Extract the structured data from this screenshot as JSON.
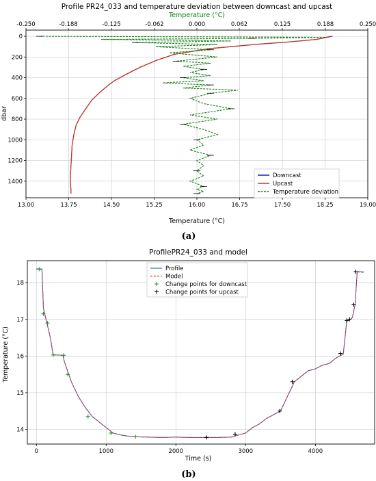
{
  "panel_labels": [
    "(a)",
    "(b)"
  ],
  "chart_data": [
    {
      "type": "line",
      "title": "Profile PR24_033 and temperature deviation between downcast and upcast",
      "xlabel": "Temperature (°C)",
      "ylabel": "dbar",
      "top_xlabel": "Temperature (°C)",
      "xlim": [
        13.0,
        19.0
      ],
      "ylim": [
        1560,
        -60
      ],
      "top_xlim": [
        -0.25,
        0.25
      ],
      "x_ticks": [
        "13.00",
        "13.75",
        "14.50",
        "15.25",
        "16.00",
        "16.75",
        "17.50",
        "18.25",
        "19.00"
      ],
      "y_ticks": [
        "0",
        "200",
        "400",
        "600",
        "800",
        "1000",
        "1200",
        "1400"
      ],
      "top_x_ticks": [
        "-0.250",
        "-0.188",
        "-0.125",
        "-0.062",
        "0.000",
        "0.062",
        "0.125",
        "0.188",
        "0.250"
      ],
      "grid": true,
      "legend_position": "lower-right",
      "colors": {
        "downcast": "#1f1fb4",
        "upcast": "#c0392b",
        "deviation": "#1a7f1a",
        "accent_green": "#008000",
        "error_bar": "#000000"
      },
      "series": [
        {
          "name": "Downcast",
          "axis": "bottom",
          "x": [
            18.38,
            18.1,
            17.6,
            17.1,
            16.2,
            15.6,
            15.3,
            15.0,
            14.75,
            14.55,
            14.45,
            14.3,
            14.15,
            14.05,
            13.95,
            13.88,
            13.84,
            13.81,
            13.8,
            13.79,
            13.78,
            13.78,
            13.79,
            13.79
          ],
          "y": [
            0,
            30,
            55,
            75,
            120,
            175,
            230,
            300,
            370,
            430,
            470,
            540,
            620,
            700,
            780,
            860,
            950,
            1050,
            1150,
            1250,
            1350,
            1420,
            1480,
            1520
          ]
        },
        {
          "name": "Upcast",
          "axis": "bottom",
          "x": [
            18.35,
            18.1,
            17.6,
            17.1,
            16.2,
            15.6,
            15.3,
            15.0,
            14.75,
            14.55,
            14.45,
            14.3,
            14.15,
            14.05,
            13.95,
            13.88,
            13.84,
            13.81,
            13.8,
            13.79,
            13.78,
            13.78,
            13.79,
            13.79
          ],
          "y": [
            0,
            30,
            55,
            75,
            120,
            175,
            230,
            300,
            370,
            430,
            470,
            540,
            620,
            700,
            780,
            860,
            950,
            1050,
            1150,
            1250,
            1350,
            1420,
            1480,
            1520
          ]
        },
        {
          "name": "Temperature deviation",
          "axis": "top",
          "x": [
            -0.23,
            0.0,
            0.19,
            0.08,
            -0.14,
            0.05,
            -0.09,
            0.03,
            -0.06,
            0.02,
            -0.04,
            0.03,
            -0.03,
            0.02,
            -0.02,
            0.01,
            -0.01,
            0.02,
            -0.02,
            0.01,
            -0.05,
            0.02,
            -0.02,
            0.06,
            0.02,
            -0.01,
            0.01,
            0.05,
            -0.01,
            0.03,
            -0.02,
            0.01,
            0.03,
            0.0,
            0.01,
            -0.01,
            0.02,
            0.0,
            0.01,
            0.0,
            0.01,
            -0.01,
            0.01,
            0.0,
            0.01,
            0.0,
            0.0
          ],
          "y": [
            0,
            5,
            10,
            20,
            30,
            45,
            60,
            80,
            100,
            130,
            160,
            200,
            240,
            260,
            290,
            320,
            350,
            380,
            400,
            430,
            450,
            470,
            500,
            520,
            550,
            600,
            650,
            700,
            760,
            800,
            850,
            900,
            950,
            1000,
            1050,
            1100,
            1150,
            1200,
            1250,
            1300,
            1350,
            1400,
            1450,
            1480,
            1500,
            1520,
            1520
          ]
        }
      ]
    },
    {
      "type": "line",
      "title": "ProfilePR24_033 and model",
      "xlabel": "Time (s)",
      "ylabel": "Temperature (°C)",
      "xlim": [
        -130,
        4850
      ],
      "ylim": [
        13.6,
        18.6
      ],
      "x_ticks": [
        "0",
        "1000",
        "2000",
        "3000",
        "4000"
      ],
      "y_ticks": [
        "14",
        "15",
        "16",
        "17",
        "18"
      ],
      "grid": true,
      "legend_position": "top-center",
      "colors": {
        "profile": "#3a6fd8",
        "model": "#c0392b",
        "downcast_points": "#2e8b2e",
        "upcast_points": "#000000"
      },
      "series": [
        {
          "name": "Profile",
          "x": [
            0,
            80,
            100,
            150,
            200,
            240,
            300,
            380,
            400,
            500,
            600,
            700,
            800,
            900,
            1000,
            1100,
            1200,
            1300,
            1400,
            1600,
            1800,
            2000,
            2200,
            2400,
            2600,
            2800,
            2900,
            3000,
            3100,
            3200,
            3300,
            3400,
            3500,
            3600,
            3700,
            3800,
            3900,
            4000,
            4100,
            4200,
            4300,
            4400,
            4450,
            4500,
            4530,
            4570,
            4600,
            4650,
            4700
          ],
          "y": [
            18.38,
            18.37,
            17.3,
            16.9,
            16.5,
            16.03,
            16.03,
            16.02,
            15.85,
            15.3,
            14.9,
            14.6,
            14.35,
            14.2,
            14.05,
            13.9,
            13.85,
            13.82,
            13.8,
            13.79,
            13.78,
            13.79,
            13.78,
            13.78,
            13.78,
            13.79,
            13.85,
            13.9,
            14.05,
            14.15,
            14.3,
            14.4,
            14.5,
            14.9,
            15.3,
            15.45,
            15.6,
            15.65,
            15.75,
            15.8,
            15.95,
            16.05,
            16.95,
            17.0,
            17.05,
            17.4,
            18.3,
            18.3,
            18.29
          ]
        },
        {
          "name": "Model",
          "x": [
            0,
            80,
            100,
            150,
            200,
            240,
            300,
            380,
            400,
            500,
            600,
            700,
            800,
            900,
            1000,
            1100,
            1200,
            1300,
            1400,
            1600,
            1800,
            2000,
            2200,
            2400,
            2600,
            2800,
            2900,
            3000,
            3100,
            3200,
            3300,
            3400,
            3500,
            3600,
            3700,
            3800,
            3900,
            4000,
            4100,
            4200,
            4300,
            4400,
            4450,
            4500,
            4530,
            4570,
            4600,
            4650,
            4700
          ],
          "y": [
            18.37,
            18.36,
            17.3,
            16.9,
            16.5,
            16.04,
            16.03,
            16.02,
            15.85,
            15.3,
            14.9,
            14.6,
            14.35,
            14.2,
            14.05,
            13.9,
            13.85,
            13.82,
            13.8,
            13.79,
            13.78,
            13.79,
            13.78,
            13.78,
            13.78,
            13.79,
            13.85,
            13.9,
            14.05,
            14.15,
            14.3,
            14.4,
            14.5,
            14.9,
            15.3,
            15.45,
            15.6,
            15.65,
            15.75,
            15.8,
            15.95,
            16.05,
            16.95,
            17.0,
            17.05,
            17.4,
            18.29,
            18.29,
            18.28
          ]
        }
      ],
      "markers": [
        {
          "name": "Change points for downcast",
          "x": [
            40,
            100,
            160,
            240,
            390,
            450,
            740,
            1070,
            1420
          ],
          "y": [
            18.37,
            17.15,
            16.9,
            16.03,
            16.02,
            15.5,
            14.35,
            13.9,
            13.8
          ]
        },
        {
          "name": "Change points for upcast",
          "x": [
            2440,
            2850,
            3490,
            3670,
            4360,
            4450,
            4490,
            4550,
            4580
          ],
          "y": [
            13.78,
            13.87,
            14.5,
            15.3,
            16.07,
            16.97,
            17.0,
            17.4,
            18.3
          ]
        }
      ]
    }
  ]
}
